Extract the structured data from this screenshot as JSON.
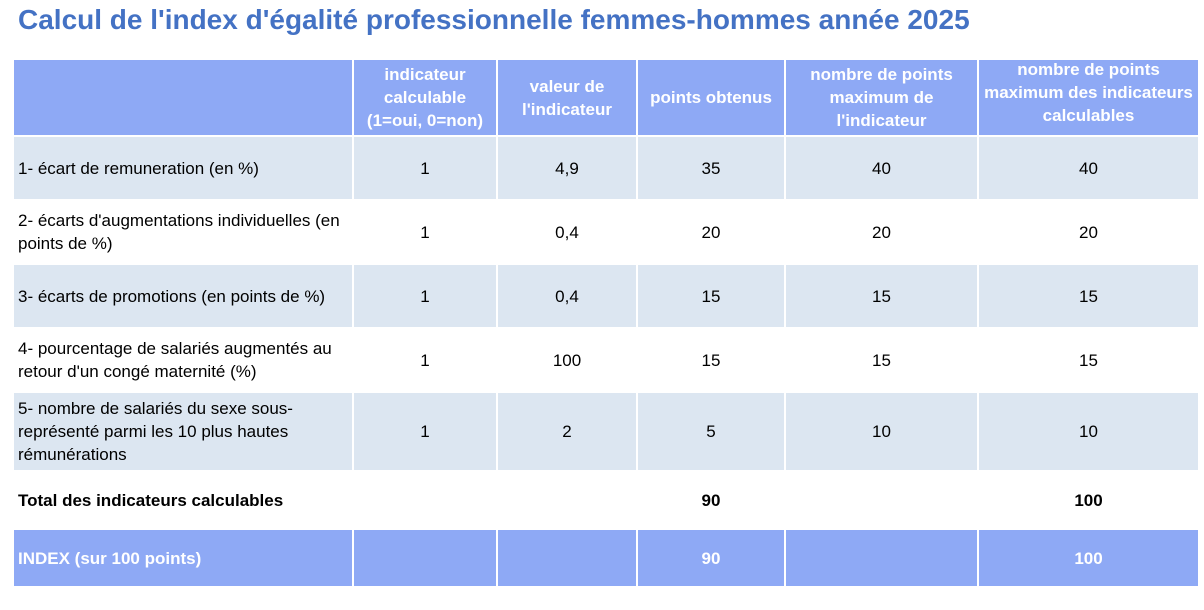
{
  "title": "Calcul de l'index d'égalité professionnelle femmes-hommes année 2025",
  "table": {
    "header": [
      "indicateur calculable (1=oui, 0=non)",
      "valeur de l'indicateur",
      "points obtenus",
      "nombre de points maximum de l'indicateur",
      "nombre de points maximum des indicateurs calculables"
    ],
    "rows": [
      [
        "1- écart de remuneration (en %)",
        "1",
        "4,9",
        "35",
        "40",
        "40"
      ],
      [
        "2- écarts d'augmentations individuelles (en points de %)",
        "1",
        "0,4",
        "20",
        "20",
        "20"
      ],
      [
        "3- écarts de promotions (en points de %)",
        "1",
        "0,4",
        "15",
        "15",
        "15"
      ],
      [
        "4- pourcentage de salariés augmentés au retour d'un congé maternité (%)",
        "1",
        "100",
        "15",
        "15",
        "15"
      ],
      [
        "5- nombre de salariés du sexe sous-représenté parmi les 10 plus hautes rémunérations",
        "1",
        "2",
        "5",
        "10",
        "10"
      ]
    ],
    "total": {
      "label": "Total des indicateurs calculables",
      "points": "90",
      "max": "100"
    },
    "index": {
      "label": "INDEX (sur 100 points)",
      "points": "90",
      "max": "100"
    }
  }
}
